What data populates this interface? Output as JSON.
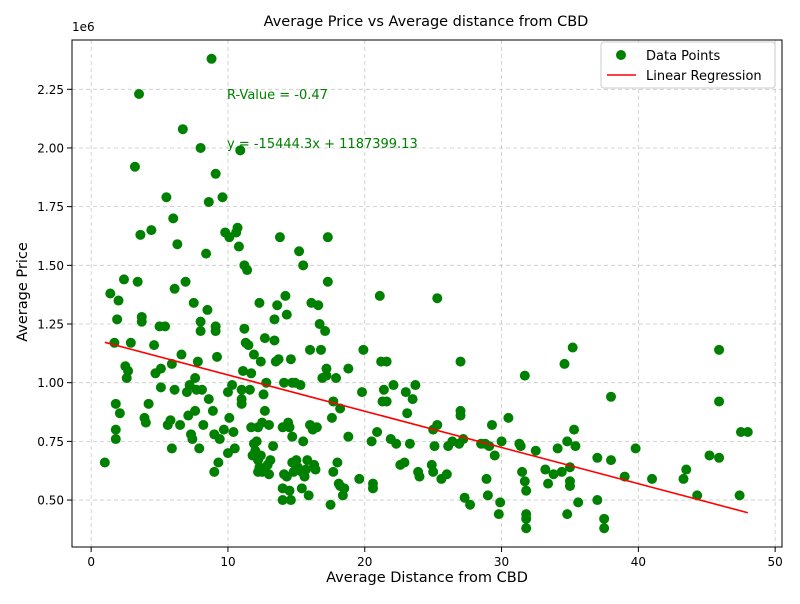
{
  "chart_data": {
    "type": "scatter",
    "title": "Average Price vs Average distance from CBD",
    "xlabel": "Average Distance from CBD",
    "ylabel": "Average Price",
    "y_offset_label": "1e6",
    "xlim": [
      -1.4,
      50.5
    ],
    "ylim": [
      0.3,
      2.46
    ],
    "x_ticks": [
      0,
      10,
      20,
      30,
      40,
      50
    ],
    "x_tick_labels": [
      "0",
      "10",
      "20",
      "30",
      "40",
      "50"
    ],
    "y_ticks": [
      0.5,
      0.75,
      1.0,
      1.25,
      1.5,
      1.75,
      2.0,
      2.25
    ],
    "y_tick_labels": [
      "0.50",
      "0.75",
      "1.00",
      "1.25",
      "1.50",
      "1.75",
      "2.00",
      "2.25"
    ],
    "grid": true,
    "legend_position": "top-right",
    "legend": [
      "Data Points",
      "Linear Regression"
    ],
    "annotations": {
      "r_value": "R-Value = -0.47",
      "equation": "y = -15444.3x + 1187399.13"
    },
    "colors": {
      "points": "#008000",
      "regression": "#ff0000",
      "annotation": "#008000"
    },
    "regression": {
      "slope": -0.0154443,
      "intercept": 1.18739913,
      "x_start": 1.0,
      "x_end": 48.0
    },
    "series": [
      {
        "name": "Data Points",
        "points": [
          [
            1.0,
            0.66
          ],
          [
            1.4,
            1.38
          ],
          [
            1.7,
            1.17
          ],
          [
            1.8,
            0.91
          ],
          [
            1.8,
            0.8
          ],
          [
            1.8,
            0.76
          ],
          [
            1.9,
            1.27
          ],
          [
            2.0,
            1.35
          ],
          [
            2.1,
            0.87
          ],
          [
            2.4,
            1.44
          ],
          [
            2.5,
            1.07
          ],
          [
            2.6,
            1.02
          ],
          [
            2.7,
            1.05
          ],
          [
            2.9,
            1.17
          ],
          [
            3.2,
            1.92
          ],
          [
            3.4,
            1.43
          ],
          [
            3.5,
            2.23
          ],
          [
            3.6,
            1.63
          ],
          [
            3.7,
            1.28
          ],
          [
            3.7,
            1.26
          ],
          [
            3.9,
            0.85
          ],
          [
            4.0,
            0.83
          ],
          [
            4.2,
            0.91
          ],
          [
            4.4,
            1.65
          ],
          [
            4.6,
            1.16
          ],
          [
            4.7,
            1.04
          ],
          [
            5.0,
            1.24
          ],
          [
            5.1,
            1.06
          ],
          [
            5.1,
            0.98
          ],
          [
            5.4,
            1.24
          ],
          [
            5.5,
            1.79
          ],
          [
            5.6,
            0.82
          ],
          [
            5.8,
            0.84
          ],
          [
            5.9,
            1.08
          ],
          [
            5.9,
            0.72
          ],
          [
            6.0,
            1.7
          ],
          [
            6.1,
            0.97
          ],
          [
            6.1,
            1.4
          ],
          [
            6.3,
            1.59
          ],
          [
            6.5,
            0.82
          ],
          [
            6.6,
            1.12
          ],
          [
            6.7,
            2.08
          ],
          [
            6.9,
            1.43
          ],
          [
            7.0,
            0.96
          ],
          [
            7.1,
            0.86
          ],
          [
            7.2,
            0.99
          ],
          [
            7.3,
            0.78
          ],
          [
            7.4,
            0.76
          ],
          [
            7.5,
            1.34
          ],
          [
            7.6,
            0.88
          ],
          [
            7.6,
            1.02
          ],
          [
            7.7,
            0.97
          ],
          [
            7.8,
            1.09
          ],
          [
            7.9,
            0.72
          ],
          [
            8.0,
            1.26
          ],
          [
            8.0,
            1.22
          ],
          [
            8.0,
            2.0
          ],
          [
            8.1,
            0.97
          ],
          [
            8.2,
            0.82
          ],
          [
            8.4,
            1.55
          ],
          [
            8.5,
            1.31
          ],
          [
            8.6,
            0.93
          ],
          [
            8.6,
            1.77
          ],
          [
            8.8,
            2.38
          ],
          [
            8.9,
            0.88
          ],
          [
            9.0,
            0.78
          ],
          [
            9.0,
            0.62
          ],
          [
            9.1,
            1.89
          ],
          [
            9.1,
            1.24
          ],
          [
            9.1,
            1.22
          ],
          [
            9.2,
            1.11
          ],
          [
            9.3,
            0.66
          ],
          [
            9.4,
            0.76
          ],
          [
            9.6,
            1.79
          ],
          [
            9.7,
            0.8
          ],
          [
            9.8,
            1.64
          ],
          [
            10.0,
            0.96
          ],
          [
            10.0,
            0.7
          ],
          [
            10.1,
            1.62
          ],
          [
            10.1,
            0.85
          ],
          [
            10.3,
            0.99
          ],
          [
            10.4,
            0.79
          ],
          [
            10.5,
            0.72
          ],
          [
            10.6,
            1.64
          ],
          [
            10.7,
            1.66
          ],
          [
            10.8,
            1.58
          ],
          [
            10.9,
            1.99
          ],
          [
            11.0,
            0.93
          ],
          [
            11.0,
            0.97
          ],
          [
            11.0,
            0.91
          ],
          [
            11.1,
            1.05
          ],
          [
            11.2,
            1.5
          ],
          [
            11.2,
            1.23
          ],
          [
            11.3,
            1.17
          ],
          [
            11.4,
            1.48
          ],
          [
            11.5,
            1.16
          ],
          [
            11.6,
            0.97
          ],
          [
            11.7,
            0.81
          ],
          [
            11.7,
            1.04
          ],
          [
            11.8,
            0.69
          ],
          [
            11.9,
            1.12
          ],
          [
            11.9,
            0.74
          ],
          [
            12.0,
            0.71
          ],
          [
            12.1,
            0.75
          ],
          [
            12.2,
            0.81
          ],
          [
            12.2,
            0.62
          ],
          [
            12.2,
            0.67
          ],
          [
            12.3,
            0.64
          ],
          [
            12.3,
            1.34
          ],
          [
            12.4,
            0.69
          ],
          [
            12.4,
            1.09
          ],
          [
            12.5,
            0.62
          ],
          [
            12.5,
            0.83
          ],
          [
            12.6,
            0.95
          ],
          [
            12.7,
            1.19
          ],
          [
            12.7,
            0.88
          ],
          [
            12.8,
            1.0
          ],
          [
            12.9,
            0.65
          ],
          [
            13.0,
            0.82
          ],
          [
            13.0,
            0.61
          ],
          [
            13.1,
            0.67
          ],
          [
            13.3,
            0.73
          ],
          [
            13.4,
            1.27
          ],
          [
            13.4,
            1.18
          ],
          [
            13.5,
            1.09
          ],
          [
            13.6,
            1.33
          ],
          [
            13.7,
            1.1
          ],
          [
            13.8,
            1.62
          ],
          [
            14.0,
            0.81
          ],
          [
            14.0,
            0.5
          ],
          [
            14.0,
            0.55
          ],
          [
            14.1,
            1.0
          ],
          [
            14.1,
            0.61
          ],
          [
            14.2,
            1.37
          ],
          [
            14.3,
            1.29
          ],
          [
            14.3,
            0.6
          ],
          [
            14.4,
            0.83
          ],
          [
            14.5,
            0.54
          ],
          [
            14.5,
            0.81
          ],
          [
            14.6,
            0.5
          ],
          [
            14.6,
            1.1
          ],
          [
            14.7,
            0.77
          ],
          [
            14.7,
            0.66
          ],
          [
            14.7,
            1.0
          ],
          [
            14.8,
            0.62
          ],
          [
            14.9,
            1.0
          ],
          [
            15.0,
            0.67
          ],
          [
            15.1,
            0.64
          ],
          [
            15.2,
            1.56
          ],
          [
            15.3,
            0.99
          ],
          [
            15.4,
            0.62
          ],
          [
            15.4,
            0.55
          ],
          [
            15.5,
            1.5
          ],
          [
            15.5,
            0.75
          ],
          [
            15.6,
            0.6
          ],
          [
            15.7,
            0.63
          ],
          [
            15.8,
            0.67
          ],
          [
            15.9,
            0.52
          ],
          [
            16.0,
            0.82
          ],
          [
            16.0,
            1.14
          ],
          [
            16.1,
            1.34
          ],
          [
            16.2,
            0.8
          ],
          [
            16.3,
            0.65
          ],
          [
            16.4,
            0.63
          ],
          [
            16.5,
            0.81
          ],
          [
            16.6,
            1.33
          ],
          [
            16.7,
            1.25
          ],
          [
            16.8,
            1.14
          ],
          [
            16.9,
            1.02
          ],
          [
            17.1,
            1.22
          ],
          [
            17.2,
            1.06
          ],
          [
            17.2,
            1.03
          ],
          [
            17.3,
            1.62
          ],
          [
            17.3,
            1.43
          ],
          [
            17.5,
            0.48
          ],
          [
            17.6,
            0.85
          ],
          [
            17.7,
            0.62
          ],
          [
            17.7,
            0.92
          ],
          [
            17.9,
            1.02
          ],
          [
            18.0,
            0.66
          ],
          [
            18.1,
            0.57
          ],
          [
            18.2,
            0.89
          ],
          [
            18.2,
            0.56
          ],
          [
            18.4,
            0.52
          ],
          [
            18.5,
            0.55
          ],
          [
            18.8,
            0.77
          ],
          [
            18.8,
            1.06
          ],
          [
            19.6,
            0.59
          ],
          [
            19.8,
            0.96
          ],
          [
            19.9,
            1.14
          ],
          [
            20.5,
            0.75
          ],
          [
            20.6,
            0.57
          ],
          [
            20.6,
            0.55
          ],
          [
            20.9,
            0.79
          ],
          [
            21.1,
            1.37
          ],
          [
            21.2,
            1.09
          ],
          [
            21.3,
            0.92
          ],
          [
            21.4,
            0.97
          ],
          [
            21.6,
            1.09
          ],
          [
            21.6,
            0.92
          ],
          [
            21.9,
            0.76
          ],
          [
            22.1,
            0.99
          ],
          [
            22.3,
            0.74
          ],
          [
            22.6,
            0.65
          ],
          [
            22.9,
            0.66
          ],
          [
            23.0,
            0.96
          ],
          [
            23.1,
            0.87
          ],
          [
            23.3,
            0.74
          ],
          [
            23.5,
            0.93
          ],
          [
            23.7,
            0.99
          ],
          [
            23.9,
            0.62
          ],
          [
            24.0,
            0.6
          ],
          [
            24.9,
            0.65
          ],
          [
            25.0,
            0.62
          ],
          [
            25.0,
            0.8
          ],
          [
            25.1,
            0.73
          ],
          [
            25.3,
            1.36
          ],
          [
            25.3,
            0.82
          ],
          [
            25.6,
            0.59
          ],
          [
            26.0,
            0.61
          ],
          [
            26.1,
            0.73
          ],
          [
            26.4,
            0.75
          ],
          [
            26.9,
            0.74
          ],
          [
            27.0,
            1.09
          ],
          [
            27.0,
            0.88
          ],
          [
            27.0,
            0.86
          ],
          [
            27.2,
            0.76
          ],
          [
            27.3,
            0.51
          ],
          [
            27.7,
            0.48
          ],
          [
            28.5,
            0.74
          ],
          [
            28.8,
            0.74
          ],
          [
            28.9,
            0.59
          ],
          [
            29.0,
            0.52
          ],
          [
            29.1,
            0.73
          ],
          [
            29.3,
            0.82
          ],
          [
            29.5,
            0.69
          ],
          [
            29.8,
            0.44
          ],
          [
            29.9,
            0.49
          ],
          [
            30.0,
            0.75
          ],
          [
            30.5,
            0.85
          ],
          [
            31.3,
            0.74
          ],
          [
            31.4,
            0.73
          ],
          [
            31.5,
            0.62
          ],
          [
            31.7,
            1.03
          ],
          [
            31.7,
            0.58
          ],
          [
            31.8,
            0.54
          ],
          [
            31.8,
            0.44
          ],
          [
            31.8,
            0.42
          ],
          [
            31.8,
            0.38
          ],
          [
            32.5,
            0.71
          ],
          [
            33.2,
            0.63
          ],
          [
            33.4,
            0.57
          ],
          [
            33.8,
            0.61
          ],
          [
            34.1,
            0.72
          ],
          [
            34.4,
            0.62
          ],
          [
            34.6,
            1.08
          ],
          [
            34.8,
            0.44
          ],
          [
            34.8,
            0.75
          ],
          [
            35.0,
            0.64
          ],
          [
            35.0,
            0.58
          ],
          [
            35.0,
            0.56
          ],
          [
            35.2,
            1.15
          ],
          [
            35.3,
            0.8
          ],
          [
            35.4,
            0.73
          ],
          [
            35.6,
            0.49
          ],
          [
            37.0,
            0.68
          ],
          [
            37.0,
            0.5
          ],
          [
            37.5,
            0.42
          ],
          [
            37.5,
            0.38
          ],
          [
            38.0,
            0.94
          ],
          [
            38.0,
            0.67
          ],
          [
            39.0,
            0.6
          ],
          [
            39.8,
            0.72
          ],
          [
            41.0,
            0.59
          ],
          [
            43.3,
            0.59
          ],
          [
            43.5,
            0.63
          ],
          [
            44.3,
            0.52
          ],
          [
            45.2,
            0.69
          ],
          [
            45.9,
            1.14
          ],
          [
            45.9,
            0.92
          ],
          [
            45.9,
            0.68
          ],
          [
            47.4,
            0.52
          ],
          [
            47.5,
            0.79
          ],
          [
            48.0,
            0.79
          ]
        ]
      }
    ]
  }
}
